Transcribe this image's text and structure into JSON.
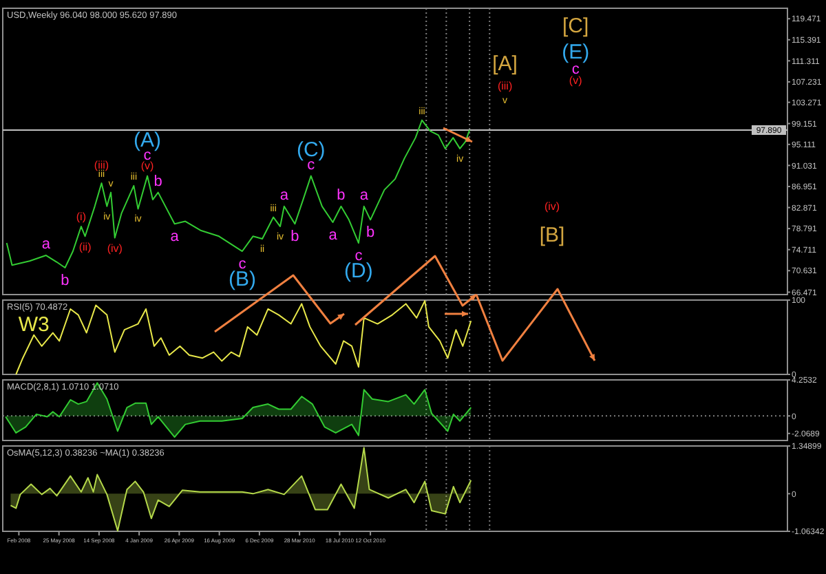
{
  "chart_data": [
    {
      "type": "line",
      "title": "USD,Weekly 96.040 98.000 95.620 97.890",
      "tick_labels": "y",
      "xlim": [
        "2007-12-20",
        "2013-12-20"
      ],
      "ylim": [
        66,
        121.5
      ],
      "yticks": [
        66.471,
        70.631,
        74.711,
        78.791,
        82.871,
        86.951,
        91.031,
        95.111,
        99.151,
        103.271,
        107.231,
        111.311,
        115.391,
        119.471
      ],
      "x": [
        "2007-12-31",
        "2008-01-15",
        "2008-03-04",
        "2008-04-19",
        "2008-05-19",
        "2008-06-11",
        "2008-07-03",
        "2008-07-26",
        "2008-08-06",
        "2008-09-02",
        "2008-09-21",
        "2008-10-06",
        "2008-10-17",
        "2008-10-28",
        "2008-11-16",
        "2008-12-20",
        "2009-01-01",
        "2009-01-27",
        "2009-02-11",
        "2009-02-26",
        "2009-04-13",
        "2009-05-13",
        "2009-06-26",
        "2009-08-15",
        "2009-10-19",
        "2009-11-18",
        "2009-12-14",
        "2010-01-14",
        "2010-02-02",
        "2010-02-13",
        "2010-03-15",
        "2010-04-07",
        "2010-04-29",
        "2010-05-30",
        "2010-06-29",
        "2010-07-22",
        "2010-08-13",
        "2010-09-09",
        "2010-09-24",
        "2010-10-12",
        "2010-11-20",
        "2010-12-20",
        "2011-01-15",
        "2011-02-15",
        "2011-03-05",
        "2011-03-28",
        "2011-04-20",
        "2011-05-09",
        "2011-05-31",
        "2011-06-19",
        "2011-07-04",
        "2011-07-16"
      ],
      "series": [
        {
          "color": "#33cc33",
          "values": [
            76.0,
            71.7,
            72.5,
            73.6,
            72.3,
            71.2,
            74.4,
            79.2,
            77.3,
            83.1,
            87.6,
            83.1,
            85.8,
            77.0,
            81.8,
            87.1,
            82.6,
            89.0,
            84.4,
            85.8,
            79.7,
            80.2,
            78.4,
            77.3,
            74.4,
            77.3,
            76.8,
            81.0,
            79.2,
            83.1,
            79.7,
            84.4,
            89.0,
            83.1,
            80.0,
            83.1,
            80.5,
            76.0,
            83.1,
            80.5,
            86.3,
            88.4,
            92.4,
            96.4,
            99.8,
            97.7,
            96.9,
            94.3,
            96.4,
            94.3,
            95.6,
            97.9
          ]
        }
      ],
      "ref_lines": [
        {
          "axis": "y",
          "value": 97.89,
          "label": "97.890",
          "color": "#c0c0c0",
          "line_style": "solid"
        },
        {
          "axis": "x",
          "value": "2011-03-17",
          "color": "#808080",
          "line_style": "dotted"
        },
        {
          "axis": "x",
          "value": "2011-05-12",
          "color": "#808080",
          "line_style": "dotted"
        },
        {
          "axis": "x",
          "value": "2011-07-16",
          "color": "#808080",
          "line_style": "dotted"
        },
        {
          "axis": "x",
          "value": "2011-09-10",
          "color": "#808080",
          "line_style": "dotted"
        }
      ],
      "annotations": [
        {
          "text": "a",
          "x": "2008-04-19",
          "y": 73.6
        },
        {
          "text": "b",
          "x": "2008-06-11",
          "y": 71.2
        },
        {
          "text": "(i)",
          "x": "2008-07-26",
          "y": 79.2
        },
        {
          "text": "(ii)",
          "x": "2008-08-06",
          "y": 77.3
        },
        {
          "text": "iii",
          "x": "2008-09-21",
          "y": 87.6
        },
        {
          "text": "(iii)",
          "x": "2008-09-21",
          "y": 87.6
        },
        {
          "text": "iv",
          "x": "2008-10-06",
          "y": 83.1
        },
        {
          "text": "v",
          "x": "2008-10-17",
          "y": 85.8
        },
        {
          "text": "(iv)",
          "x": "2008-10-28",
          "y": 77.0
        },
        {
          "text": "iii",
          "x": "2008-12-20",
          "y": 87.1
        },
        {
          "text": "iv",
          "x": "2009-01-01",
          "y": 82.6
        },
        {
          "text": "(v)",
          "x": "2009-01-27",
          "y": 89.0
        },
        {
          "text": "c",
          "x": "2009-01-27",
          "y": 89.0
        },
        {
          "text": "(A)",
          "x": "2009-01-27",
          "y": 89.0
        },
        {
          "text": "b",
          "x": "2009-02-26",
          "y": 85.8
        },
        {
          "text": "a",
          "x": "2009-04-13",
          "y": 79.7
        },
        {
          "text": "c",
          "x": "2009-10-19",
          "y": 74.4
        },
        {
          "text": "(B)",
          "x": "2009-10-19",
          "y": 74.4
        },
        {
          "text": "ii",
          "x": "2009-12-14",
          "y": 76.8
        },
        {
          "text": "iii",
          "x": "2010-01-14",
          "y": 81.0
        },
        {
          "text": "iv",
          "x": "2010-02-02",
          "y": 79.2
        },
        {
          "text": "a",
          "x": "2010-02-13",
          "y": 83.1
        },
        {
          "text": "b",
          "x": "2010-03-15",
          "y": 79.7
        },
        {
          "text": "c",
          "x": "2010-04-29",
          "y": 89.0
        },
        {
          "text": "(C)",
          "x": "2010-04-29",
          "y": 89.0
        },
        {
          "text": "a",
          "x": "2010-06-29",
          "y": 80.0
        },
        {
          "text": "b",
          "x": "2010-07-22",
          "y": 83.1
        },
        {
          "text": "c",
          "x": "2010-09-09",
          "y": 76.0
        },
        {
          "text": "(D)",
          "x": "2010-09-09",
          "y": 76.0
        },
        {
          "text": "a",
          "x": "2010-09-24",
          "y": 83.1
        },
        {
          "text": "b",
          "x": "2010-10-12",
          "y": 80.5
        },
        {
          "text": "iii",
          "x": "2011-03-05",
          "y": 99.8
        },
        {
          "text": "iv",
          "x": "2011-06-19",
          "y": 94.3
        },
        "[A]",
        "(iii)",
        "v",
        "[C]",
        "(E)",
        "c",
        "(v)",
        "(iv)",
        "[B]"
      ]
    },
    {
      "type": "line",
      "title": "RSI(5) 70.4872",
      "tick_labels": "y",
      "xlim": [
        "2007-12-20",
        "2013-12-20"
      ],
      "ylim": [
        0,
        100
      ],
      "yticks": [
        0,
        100
      ],
      "x": [
        "2008-01-26",
        "2008-02-14",
        "2008-03-16",
        "2008-04-07",
        "2008-05-08",
        "2008-05-26",
        "2008-06-26",
        "2008-07-18",
        "2008-08-10",
        "2008-09-05",
        "2008-10-06",
        "2008-10-28",
        "2008-11-24",
        "2009-01-01",
        "2009-01-23",
        "2009-02-15",
        "2009-03-06",
        "2009-03-29",
        "2009-04-28",
        "2009-05-24",
        "2009-06-30",
        "2009-07-31",
        "2009-08-23",
        "2009-09-18",
        "2009-10-11",
        "2009-11-03",
        "2009-11-29",
        "2009-12-30",
        "2010-01-29",
        "2010-03-04",
        "2010-04-03",
        "2010-04-26",
        "2010-05-26",
        "2010-07-07",
        "2010-07-29",
        "2010-08-21",
        "2010-09-09",
        "2010-09-24",
        "2010-11-01",
        "2010-12-12",
        "2011-01-19",
        "2011-02-18",
        "2011-03-13",
        "2011-03-24",
        "2011-04-24",
        "2011-05-16",
        "2011-06-08",
        "2011-06-27",
        "2011-07-20"
      ],
      "series": [
        {
          "color": "#e8e84a",
          "values": [
            0,
            22,
            53,
            38,
            56,
            45,
            88,
            80,
            56,
            93,
            80,
            30,
            60,
            68,
            88,
            38,
            49,
            26,
            38,
            26,
            22,
            30,
            18,
            30,
            24,
            64,
            53,
            88,
            80,
            68,
            95,
            64,
            38,
            14,
            45,
            38,
            10,
            76,
            68,
            80,
            95,
            76,
            99,
            64,
            45,
            22,
            60,
            38,
            72
          ]
        }
      ],
      "ref_lines": [
        {
          "axis": "x",
          "value": "2011-03-17",
          "color": "#808080",
          "line_style": "dotted"
        },
        {
          "axis": "x",
          "value": "2011-05-12",
          "color": "#808080",
          "line_style": "dotted"
        },
        {
          "axis": "x",
          "value": "2011-07-16",
          "color": "#808080",
          "line_style": "dotted"
        },
        {
          "axis": "x",
          "value": "2011-09-10",
          "color": "#808080",
          "line_style": "dotted"
        }
      ],
      "annotations": [
        "W3"
      ]
    },
    {
      "type": "area",
      "title": "MACD(2,8,1) 1.0710 1.0710",
      "tick_labels": "y",
      "xlim": [
        "2007-12-20",
        "2013-12-20"
      ],
      "ylim": [
        -2.9,
        4.2532
      ],
      "yticks": [
        -2.0689,
        0,
        4.2532
      ],
      "x": [
        "2007-12-28",
        "2008-01-26",
        "2008-02-22",
        "2008-03-23",
        "2008-04-22",
        "2008-05-08",
        "2008-05-26",
        "2008-06-26",
        "2008-07-18",
        "2008-08-10",
        "2008-09-09",
        "2008-10-06",
        "2008-11-05",
        "2008-12-01",
        "2008-12-24",
        "2009-01-23",
        "2009-02-07",
        "2009-02-26",
        "2009-04-13",
        "2009-05-13",
        "2009-06-23",
        "2009-08-23",
        "2009-10-19",
        "2009-11-18",
        "2009-12-30",
        "2010-01-29",
        "2010-03-04",
        "2010-04-03",
        "2010-05-03",
        "2010-06-06",
        "2010-07-07",
        "2010-08-21",
        "2010-09-09",
        "2010-09-24",
        "2010-10-17",
        "2010-12-01",
        "2011-01-19",
        "2011-02-11",
        "2011-03-13",
        "2011-04-01",
        "2011-05-16",
        "2011-06-01",
        "2011-06-19",
        "2011-07-20"
      ],
      "series": [
        {
          "color": "#33cc33",
          "values": [
            -0.1,
            -2.0,
            -1.3,
            0.2,
            -0.1,
            0.5,
            -0.1,
            1.9,
            1.4,
            1.7,
            3.9,
            2.0,
            -1.8,
            1.0,
            1.5,
            1.5,
            -1.0,
            -0.1,
            -2.5,
            -1.0,
            -0.6,
            -0.6,
            -0.3,
            1.0,
            1.4,
            0.8,
            0.8,
            2.3,
            1.4,
            -1.3,
            -2.0,
            -1.0,
            -2.3,
            3.1,
            2.0,
            1.7,
            2.5,
            1.4,
            3.1,
            0.3,
            -1.8,
            0.2,
            -0.6,
            1.0
          ]
        }
      ],
      "ref_lines": [
        {
          "axis": "y",
          "value": 0,
          "color": "#808080",
          "line_style": "dotted"
        },
        {
          "axis": "x",
          "value": "2011-03-17",
          "color": "#808080",
          "line_style": "dotted"
        },
        {
          "axis": "x",
          "value": "2011-05-12",
          "color": "#808080",
          "line_style": "dotted"
        },
        {
          "axis": "x",
          "value": "2011-07-16",
          "color": "#808080",
          "line_style": "dotted"
        },
        {
          "axis": "x",
          "value": "2011-09-10",
          "color": "#808080",
          "line_style": "dotted"
        }
      ]
    },
    {
      "type": "area",
      "title": "OsMA(5,12,3) 0.38236 ~MA(1) 0.38236",
      "xlim": [
        "2007-12-20",
        "2013-12-20"
      ],
      "ylim": [
        -1.06342,
        1.34899
      ],
      "yticks": [
        -1.06342,
        0,
        1.34899
      ],
      "xticks": [
        {
          "value": "2008-02-03",
          "label": "Feb 2008"
        },
        {
          "value": "2008-05-25",
          "label": "25 May 2008"
        },
        {
          "value": "2008-09-14",
          "label": "14 Sep 2008"
        },
        {
          "value": "2009-01-04",
          "label": "4 Jan 2009"
        },
        {
          "value": "2009-04-26",
          "label": "26 Apr 2009"
        },
        {
          "value": "2009-08-16",
          "label": "16 Aug 2009"
        },
        {
          "value": "2009-12-06",
          "label": "6 Dec 2009"
        },
        {
          "value": "2010-03-28",
          "label": "28 Mar 2010"
        },
        {
          "value": "2010-07-18",
          "label": "18 Jul 2010"
        },
        {
          "value": "2010-10-12",
          "label": "12 Oct 2010"
        }
      ],
      "x": [
        "2008-01-11",
        "2008-01-26",
        "2008-02-07",
        "2008-03-08",
        "2008-04-07",
        "2008-04-30",
        "2008-05-19",
        "2008-06-26",
        "2008-07-26",
        "2008-08-14",
        "2008-08-29",
        "2008-09-09",
        "2008-10-06",
        "2008-11-05",
        "2008-12-01",
        "2008-12-24",
        "2009-01-16",
        "2009-02-07",
        "2009-02-26",
        "2009-03-29",
        "2009-05-05",
        "2009-06-23",
        "2009-08-23",
        "2009-10-19",
        "2009-11-18",
        "2009-12-30",
        "2010-02-13",
        "2010-04-03",
        "2010-05-11",
        "2010-06-14",
        "2010-07-22",
        "2010-08-28",
        "2010-09-24",
        "2010-10-09",
        "2010-12-01",
        "2011-01-19",
        "2011-02-11",
        "2011-03-13",
        "2011-04-01",
        "2011-05-09",
        "2011-06-01",
        "2011-06-19",
        "2011-07-20"
      ],
      "series": [
        {
          "color": "#b5d94a",
          "values": [
            -0.33,
            -0.41,
            -0.02,
            0.27,
            -0.02,
            0.15,
            -0.06,
            0.5,
            0.05,
            0.45,
            0.05,
            0.54,
            -0.02,
            -1.05,
            0.12,
            0.35,
            0.05,
            -0.7,
            -0.18,
            -0.36,
            0.1,
            0.05,
            0.05,
            0.05,
            0,
            0.12,
            -0.02,
            0.5,
            -0.45,
            -0.45,
            0.27,
            -0.41,
            1.3,
            0.12,
            -0.12,
            0.12,
            -0.25,
            0.35,
            -0.48,
            -0.57,
            0.2,
            -0.25,
            0.38
          ]
        }
      ],
      "ref_lines": [
        {
          "axis": "x",
          "value": "2011-03-17",
          "color": "#808080",
          "line_style": "dotted"
        },
        {
          "axis": "x",
          "value": "2011-05-12",
          "color": "#808080",
          "line_style": "dotted"
        },
        {
          "axis": "x",
          "value": "2011-07-16",
          "color": "#808080",
          "line_style": "dotted"
        },
        {
          "axis": "x",
          "value": "2011-09-10",
          "color": "#808080",
          "line_style": "dotted"
        }
      ]
    }
  ]
}
